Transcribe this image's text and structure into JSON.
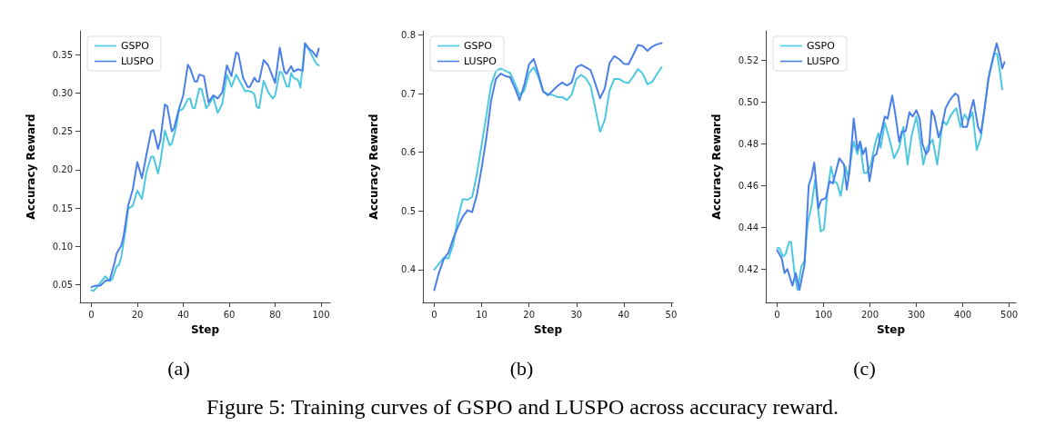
{
  "chart_data": [
    {
      "type": "line",
      "subtitle": "(a)",
      "xlabel": "Step",
      "ylabel": "Accuracy Reward",
      "xlim": [
        -4.95,
        103.95
      ],
      "xticks": [
        0,
        20,
        40,
        60,
        80,
        100
      ],
      "ylim": [
        0.027,
        0.381
      ],
      "yticks": [
        0.05,
        {
          "value": 0.1,
          "label": "0.10"
        },
        0.15,
        {
          "value": 0.2,
          "label": "0.20"
        },
        0.25,
        {
          "value": 0.3,
          "label": "0.30"
        },
        0.35
      ],
      "legend": "top left",
      "grid": false,
      "marker": "none",
      "line_style": "solid",
      "annotations": [
        "Figure 5: Training curves of GSPO and LUSPO across accuracy reward."
      ],
      "series": [
        {
          "name": "GSPO",
          "color": "#4cc8e0",
          "x": [
            0,
            1,
            3,
            5,
            6,
            8,
            9,
            11,
            12,
            13,
            15,
            16,
            18,
            20,
            22,
            24,
            26,
            27,
            29,
            30,
            32,
            34,
            35,
            37,
            38,
            40,
            42,
            43,
            44,
            45,
            47,
            48,
            50,
            51,
            53,
            55,
            57,
            59,
            61,
            63,
            65,
            67,
            68,
            70,
            71,
            72,
            73,
            75,
            77,
            79,
            80,
            82,
            83,
            85,
            86,
            87,
            88,
            90,
            91,
            93,
            95,
            97,
            98,
            99
          ],
          "values": [
            0.043,
            0.042,
            0.049,
            0.057,
            0.061,
            0.055,
            0.057,
            0.074,
            0.076,
            0.086,
            0.124,
            0.149,
            0.153,
            0.173,
            0.162,
            0.197,
            0.217,
            0.217,
            0.195,
            0.209,
            0.251,
            0.232,
            0.234,
            0.257,
            0.276,
            0.28,
            0.292,
            0.293,
            0.281,
            0.28,
            0.306,
            0.305,
            0.28,
            0.284,
            0.295,
            0.274,
            0.286,
            0.324,
            0.308,
            0.324,
            0.313,
            0.302,
            0.303,
            0.301,
            0.298,
            0.282,
            0.28,
            0.316,
            0.301,
            0.293,
            0.297,
            0.328,
            0.326,
            0.309,
            0.308,
            0.326,
            0.32,
            0.317,
            0.307,
            0.363,
            0.355,
            0.343,
            0.338,
            0.336
          ]
        },
        {
          "name": "LUSPO",
          "color": "#4a7ee8",
          "x": [
            0,
            2,
            4,
            6,
            8,
            10,
            11,
            13,
            14,
            16,
            18,
            20,
            22,
            24,
            26,
            27,
            29,
            30,
            32,
            33,
            35,
            36,
            38,
            40,
            42,
            43,
            45,
            46,
            47,
            49,
            51,
            53,
            55,
            57,
            59,
            61,
            63,
            64,
            66,
            68,
            69,
            71,
            72,
            73,
            75,
            77,
            80,
            82,
            84,
            85,
            87,
            88,
            90,
            92,
            93,
            95,
            96,
            98,
            99
          ],
          "values": [
            0.047,
            0.049,
            0.049,
            0.055,
            0.056,
            0.078,
            0.091,
            0.101,
            0.113,
            0.153,
            0.174,
            0.21,
            0.189,
            0.22,
            0.25,
            0.252,
            0.227,
            0.238,
            0.285,
            0.283,
            0.25,
            0.254,
            0.278,
            0.297,
            0.337,
            0.332,
            0.315,
            0.315,
            0.324,
            0.322,
            0.288,
            0.297,
            0.293,
            0.301,
            0.336,
            0.322,
            0.353,
            0.351,
            0.32,
            0.308,
            0.308,
            0.32,
            0.315,
            0.315,
            0.343,
            0.336,
            0.313,
            0.359,
            0.328,
            0.325,
            0.335,
            0.328,
            0.331,
            0.329,
            0.365,
            0.357,
            0.355,
            0.347,
            0.358
          ]
        }
      ]
    },
    {
      "type": "line",
      "subtitle": "(b)",
      "xlabel": "Step",
      "ylabel": "Accuracy Reward",
      "xlim": [
        -2.4,
        50.4
      ],
      "xticks": [
        0,
        10,
        20,
        30,
        40,
        50
      ],
      "ylim": [
        0.344,
        0.807
      ],
      "yticks": [
        0.4,
        0.5,
        0.6,
        0.7,
        0.8
      ],
      "legend": "top left",
      "grid": false,
      "marker": "none",
      "line_style": "solid",
      "series": [
        {
          "name": "GSPO",
          "color": "#4cc8e0",
          "x": [
            0,
            1,
            2,
            3,
            4,
            5,
            6,
            7,
            8,
            9,
            10,
            11,
            12,
            13,
            14,
            15,
            16,
            17,
            18,
            19,
            20,
            21,
            22,
            23,
            24,
            25,
            26,
            27,
            28,
            29,
            30,
            31,
            32,
            33,
            34,
            35,
            36,
            37,
            38,
            39,
            40,
            41,
            42,
            43,
            44,
            45,
            46,
            47,
            48
          ],
          "values": [
            0.4,
            0.41,
            0.42,
            0.419,
            0.443,
            0.488,
            0.52,
            0.519,
            0.524,
            0.563,
            0.613,
            0.663,
            0.715,
            0.738,
            0.743,
            0.739,
            0.735,
            0.718,
            0.698,
            0.705,
            0.735,
            0.745,
            0.728,
            0.703,
            0.699,
            0.698,
            0.694,
            0.694,
            0.689,
            0.698,
            0.725,
            0.732,
            0.726,
            0.713,
            0.675,
            0.635,
            0.655,
            0.705,
            0.725,
            0.725,
            0.72,
            0.718,
            0.729,
            0.742,
            0.734,
            0.716,
            0.72,
            0.733,
            0.745
          ]
        },
        {
          "name": "LUSPO",
          "color": "#4a7ee8",
          "x": [
            0,
            1,
            2,
            3,
            4,
            5,
            6,
            7,
            8,
            9,
            10,
            11,
            12,
            13,
            14,
            15,
            16,
            17,
            18,
            19,
            20,
            21,
            22,
            23,
            24,
            25,
            26,
            27,
            28,
            29,
            30,
            31,
            32,
            33,
            34,
            35,
            36,
            37,
            38,
            39,
            40,
            41,
            42,
            43,
            44,
            45,
            46,
            47,
            48
          ],
          "values": [
            0.365,
            0.395,
            0.418,
            0.429,
            0.453,
            0.473,
            0.49,
            0.501,
            0.498,
            0.528,
            0.573,
            0.625,
            0.688,
            0.725,
            0.734,
            0.73,
            0.728,
            0.71,
            0.689,
            0.715,
            0.75,
            0.759,
            0.733,
            0.704,
            0.697,
            0.705,
            0.713,
            0.719,
            0.714,
            0.719,
            0.745,
            0.749,
            0.745,
            0.74,
            0.717,
            0.692,
            0.709,
            0.752,
            0.764,
            0.759,
            0.751,
            0.75,
            0.766,
            0.783,
            0.781,
            0.773,
            0.78,
            0.784,
            0.786
          ]
        }
      ]
    },
    {
      "type": "line",
      "subtitle": "(c)",
      "xlabel": "Step",
      "ylabel": "Accuracy Reward",
      "xlim": [
        -24.5,
        514.5
      ],
      "xticks": [
        0,
        100,
        200,
        300,
        400,
        500
      ],
      "ylim": [
        0.404,
        0.534
      ],
      "yticks": [
        0.42,
        0.44,
        0.46,
        0.48,
        {
          "value": 0.5,
          "label": "0.50"
        },
        0.52
      ],
      "legend": "top left",
      "grid": false,
      "marker": "none",
      "line_style": "solid",
      "series": [
        {
          "name": "GSPO",
          "color": "#4cc8e0",
          "x": [
            0,
            5,
            12,
            18,
            26,
            30,
            38,
            44,
            52,
            59,
            66,
            74,
            82,
            89,
            94,
            101,
            108,
            116,
            123,
            129,
            137,
            147,
            153,
            159,
            165,
            173,
            178,
            187,
            193,
            202,
            211,
            218,
            223,
            232,
            241,
            252,
            263,
            272,
            281,
            290,
            300,
            309,
            315,
            323,
            335,
            345,
            357,
            365,
            375,
            386,
            395,
            404,
            412,
            421,
            430,
            439,
            448,
            457,
            468,
            474,
            481,
            485
          ],
          "values": [
            0.43,
            0.43,
            0.426,
            0.427,
            0.433,
            0.433,
            0.417,
            0.41,
            0.421,
            0.424,
            0.442,
            0.45,
            0.463,
            0.447,
            0.438,
            0.439,
            0.456,
            0.469,
            0.462,
            0.461,
            0.455,
            0.469,
            0.464,
            0.473,
            0.481,
            0.475,
            0.481,
            0.466,
            0.466,
            0.47,
            0.48,
            0.485,
            0.478,
            0.49,
            0.483,
            0.473,
            0.478,
            0.488,
            0.47,
            0.484,
            0.493,
            0.48,
            0.47,
            0.478,
            0.482,
            0.47,
            0.491,
            0.489,
            0.494,
            0.497,
            0.488,
            0.494,
            0.491,
            0.495,
            0.477,
            0.483,
            0.499,
            0.513,
            0.523,
            0.523,
            0.513,
            0.506
          ]
        },
        {
          "name": "LUSPO",
          "color": "#4a7ee8",
          "x": [
            0,
            10,
            16,
            22,
            33,
            40,
            48,
            59,
            68,
            74,
            80,
            89,
            95,
            105,
            113,
            120,
            134,
            144,
            150,
            156,
            165,
            173,
            179,
            185,
            191,
            199,
            208,
            214,
            222,
            232,
            238,
            248,
            254,
            263,
            269,
            277,
            285,
            292,
            300,
            307,
            313,
            321,
            327,
            333,
            339,
            348,
            354,
            363,
            370,
            376,
            384,
            390,
            400,
            409,
            415,
            423,
            433,
            439,
            448,
            455,
            464,
            473,
            479,
            485,
            490
          ],
          "values": [
            0.429,
            0.425,
            0.418,
            0.42,
            0.412,
            0.418,
            0.41,
            0.422,
            0.46,
            0.464,
            0.471,
            0.449,
            0.453,
            0.454,
            0.462,
            0.461,
            0.473,
            0.47,
            0.458,
            0.467,
            0.492,
            0.477,
            0.481,
            0.475,
            0.478,
            0.462,
            0.474,
            0.475,
            0.483,
            0.493,
            0.492,
            0.503,
            0.495,
            0.481,
            0.486,
            0.486,
            0.495,
            0.493,
            0.496,
            0.492,
            0.48,
            0.475,
            0.477,
            0.496,
            0.493,
            0.483,
            0.487,
            0.497,
            0.5,
            0.502,
            0.504,
            0.503,
            0.488,
            0.488,
            0.494,
            0.501,
            0.488,
            0.485,
            0.498,
            0.511,
            0.52,
            0.528,
            0.523,
            0.516,
            0.519
          ]
        }
      ]
    }
  ]
}
